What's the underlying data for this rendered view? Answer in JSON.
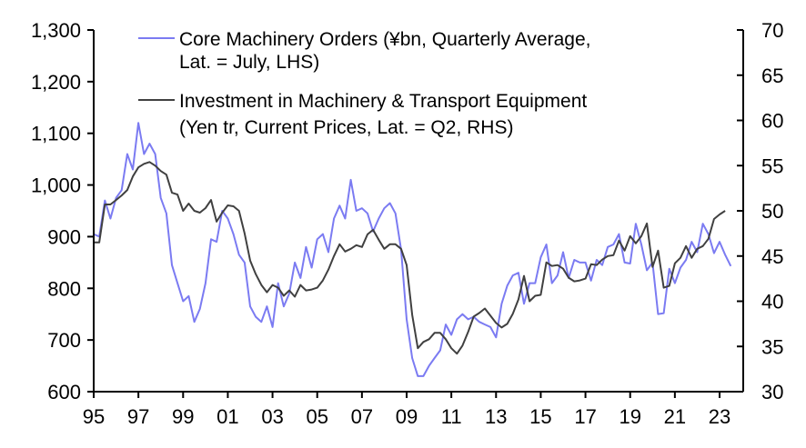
{
  "chart_data": {
    "type": "line",
    "title": "",
    "xlabel": "",
    "ylabel_left": "",
    "ylabel_right": "",
    "x_start": 1995.0,
    "x_step": 0.25,
    "xlim": [
      1995,
      2024.1
    ],
    "ylim_left": [
      600,
      1300
    ],
    "ylim_right": [
      30,
      70
    ],
    "x_ticks": [
      {
        "value": 1995,
        "label": "95"
      },
      {
        "value": 1997,
        "label": "97"
      },
      {
        "value": 1999,
        "label": "99"
      },
      {
        "value": 2001,
        "label": "01"
      },
      {
        "value": 2003,
        "label": "03"
      },
      {
        "value": 2005,
        "label": "05"
      },
      {
        "value": 2007,
        "label": "07"
      },
      {
        "value": 2009,
        "label": "09"
      },
      {
        "value": 2011,
        "label": "11"
      },
      {
        "value": 2013,
        "label": "13"
      },
      {
        "value": 2015,
        "label": "15"
      },
      {
        "value": 2017,
        "label": "17"
      },
      {
        "value": 2019,
        "label": "19"
      },
      {
        "value": 2021,
        "label": "21"
      },
      {
        "value": 2023,
        "label": "23"
      }
    ],
    "y_left_ticks": [
      {
        "value": 600,
        "label": "600"
      },
      {
        "value": 700,
        "label": "700"
      },
      {
        "value": 800,
        "label": "800"
      },
      {
        "value": 900,
        "label": "900"
      },
      {
        "value": 1000,
        "label": "1,000"
      },
      {
        "value": 1100,
        "label": "1,100"
      },
      {
        "value": 1200,
        "label": "1,200"
      },
      {
        "value": 1300,
        "label": "1,300"
      }
    ],
    "y_right_ticks": [
      {
        "value": 30,
        "label": "30"
      },
      {
        "value": 35,
        "label": "35"
      },
      {
        "value": 40,
        "label": "40"
      },
      {
        "value": 45,
        "label": "45"
      },
      {
        "value": 50,
        "label": "50"
      },
      {
        "value": 55,
        "label": "55"
      },
      {
        "value": 60,
        "label": "60"
      },
      {
        "value": 65,
        "label": "65"
      },
      {
        "value": 70,
        "label": "70"
      }
    ],
    "legend_position": "top-left",
    "series": [
      {
        "name": "Core Machinery Orders (¥bn, Quarterly Average, Lat. = July, LHS)",
        "legend_lines": [
          "Core Machinery Orders (¥bn, Quarterly Average,",
          "Lat. = July, LHS)"
        ],
        "axis": "left",
        "color": "#7b7bf2",
        "values": [
          905,
          900,
          970,
          935,
          975,
          990,
          1060,
          1030,
          1120,
          1060,
          1080,
          1060,
          975,
          945,
          845,
          810,
          775,
          785,
          735,
          760,
          810,
          895,
          890,
          950,
          935,
          905,
          865,
          850,
          765,
          745,
          735,
          765,
          725,
          810,
          765,
          790,
          850,
          820,
          880,
          840,
          895,
          905,
          870,
          935,
          960,
          935,
          1010,
          950,
          955,
          945,
          910,
          935,
          955,
          965,
          945,
          875,
          740,
          665,
          630,
          630,
          650,
          665,
          680,
          730,
          710,
          740,
          750,
          740,
          745,
          735,
          730,
          725,
          705,
          770,
          805,
          825,
          830,
          770,
          810,
          810,
          860,
          885,
          810,
          825,
          870,
          820,
          855,
          850,
          850,
          815,
          855,
          845,
          880,
          885,
          905,
          850,
          848,
          925,
          885,
          835,
          850,
          750,
          752,
          838,
          810,
          840,
          855,
          890,
          870,
          925,
          905,
          868,
          890,
          865,
          843
        ]
      },
      {
        "name": "Investment in Machinery & Transport Equipment (Yen tr, Current Prices, Lat. = Q2, RHS)",
        "legend_lines": [
          "Investment in Machinery & Transport Equipment",
          "(Yen tr, Current Prices, Lat. = Q2, RHS)"
        ],
        "axis": "right",
        "color": "#404040",
        "values": [
          46.5,
          46.5,
          50.7,
          50.7,
          51.2,
          51.7,
          52.3,
          53.8,
          54.8,
          55.2,
          55.4,
          55.0,
          54.4,
          54.0,
          52.0,
          51.8,
          50.0,
          50.8,
          50.0,
          49.8,
          50.3,
          51.2,
          48.8,
          49.8,
          50.6,
          50.5,
          50.0,
          47.5,
          44.5,
          43.0,
          41.8,
          41.0,
          41.8,
          41.5,
          40.6,
          41.2,
          40.5,
          41.8,
          41.2,
          41.3,
          41.5,
          42.3,
          43.5,
          45.0,
          46.3,
          45.5,
          45.8,
          46.2,
          46.0,
          47.4,
          47.9,
          46.8,
          45.8,
          46.3,
          46.3,
          45.8,
          44.0,
          38.5,
          34.8,
          35.5,
          35.8,
          36.5,
          36.5,
          35.8,
          34.8,
          34.2,
          35.1,
          36.6,
          38.3,
          38.7,
          39.2,
          38.4,
          37.6,
          37.1,
          37.5,
          38.6,
          40.2,
          42.8,
          40.0,
          40.6,
          40.7,
          44.3,
          43.9,
          44.0,
          43.6,
          42.6,
          42.2,
          42.3,
          42.5,
          44.1,
          44.0,
          44.6,
          45.0,
          45.1,
          46.7,
          45.6,
          47.2,
          46.4,
          47.2,
          48.6,
          43.8,
          45.6,
          41.5,
          41.7,
          44.2,
          44.8,
          46.1,
          44.8,
          45.8,
          46.1,
          46.9,
          49.1,
          49.6,
          50.0
        ]
      }
    ]
  }
}
